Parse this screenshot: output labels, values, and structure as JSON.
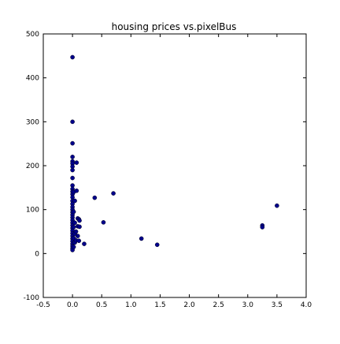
{
  "chart_data": {
    "type": "scatter",
    "title": "housing prices vs.pixelBus",
    "xlabel": "",
    "ylabel": "",
    "xlim": [
      -0.5,
      4.0
    ],
    "ylim": [
      -100,
      500
    ],
    "xticks": [
      "-0.5",
      "0.0",
      "0.5",
      "1.0",
      "1.5",
      "2.0",
      "2.5",
      "3.0",
      "3.5",
      "4.0"
    ],
    "yticks": [
      "500",
      "400",
      "300",
      "200",
      "100",
      "0",
      "-100"
    ],
    "xtick_values": [
      -0.5,
      0.0,
      0.5,
      1.0,
      1.5,
      2.0,
      2.5,
      3.0,
      3.5,
      4.0
    ],
    "ytick_values": [
      500,
      400,
      300,
      200,
      100,
      0,
      -100
    ],
    "marker_color": "#00008b",
    "grid": false,
    "series": [
      {
        "name": "housing prices",
        "points": [
          [
            0.0,
            447
          ],
          [
            0.0,
            300
          ],
          [
            0.0,
            251
          ],
          [
            0.0,
            220
          ],
          [
            0.0,
            210
          ],
          [
            0.0,
            205
          ],
          [
            0.0,
            198
          ],
          [
            0.0,
            190
          ],
          [
            0.0,
            172
          ],
          [
            0.0,
            155
          ],
          [
            0.0,
            147
          ],
          [
            0.0,
            141
          ],
          [
            0.0,
            135
          ],
          [
            0.0,
            128
          ],
          [
            0.0,
            120
          ],
          [
            0.0,
            113
          ],
          [
            0.0,
            106
          ],
          [
            0.0,
            100
          ],
          [
            0.0,
            94
          ],
          [
            0.0,
            88
          ],
          [
            0.0,
            82
          ],
          [
            0.0,
            76
          ],
          [
            0.0,
            70
          ],
          [
            0.0,
            64
          ],
          [
            0.0,
            58
          ],
          [
            0.0,
            52
          ],
          [
            0.0,
            46
          ],
          [
            0.0,
            40
          ],
          [
            0.0,
            34
          ],
          [
            0.0,
            28
          ],
          [
            0.0,
            22
          ],
          [
            0.0,
            17
          ],
          [
            0.0,
            12
          ],
          [
            0.0,
            8
          ],
          [
            0.02,
            140
          ],
          [
            0.02,
            95
          ],
          [
            0.02,
            60
          ],
          [
            0.02,
            35
          ],
          [
            0.02,
            15
          ],
          [
            0.04,
            120
          ],
          [
            0.04,
            70
          ],
          [
            0.04,
            45
          ],
          [
            0.04,
            25
          ],
          [
            0.06,
            50
          ],
          [
            0.06,
            30
          ],
          [
            0.07,
            207
          ],
          [
            0.07,
            143
          ],
          [
            0.09,
            80
          ],
          [
            0.09,
            62
          ],
          [
            0.09,
            40
          ],
          [
            0.11,
            78
          ],
          [
            0.11,
            29
          ],
          [
            0.12,
            75
          ],
          [
            0.12,
            61
          ],
          [
            0.2,
            22
          ],
          [
            0.38,
            127
          ],
          [
            0.53,
            71
          ],
          [
            0.7,
            137
          ],
          [
            1.18,
            34
          ],
          [
            1.45,
            20
          ],
          [
            3.25,
            64
          ],
          [
            3.25,
            60
          ],
          [
            3.5,
            109
          ]
        ]
      }
    ]
  }
}
